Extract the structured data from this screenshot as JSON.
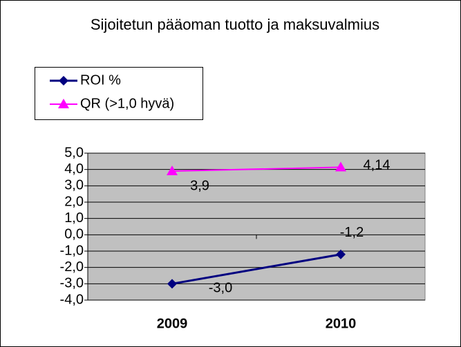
{
  "chart_data": {
    "type": "line",
    "title": "Sijoitetun pääoman tuotto ja maksuvalmius",
    "categories": [
      "2009",
      "2010"
    ],
    "series": [
      {
        "name": "ROI %",
        "color": "#000080",
        "marker": "diamond",
        "values": [
          -3.0,
          -1.2
        ],
        "value_labels": [
          "-3,0",
          "-1,2"
        ]
      },
      {
        "name": "QR (>1,0 hyvä)",
        "color": "#ff00ff",
        "marker": "triangle",
        "values": [
          3.9,
          4.14
        ],
        "value_labels": [
          "3,9",
          "4,14"
        ]
      }
    ],
    "ylim": [
      -4,
      5
    ],
    "yticks": [
      {
        "value": -4,
        "label": "-4,0"
      },
      {
        "value": -3,
        "label": "-3,0"
      },
      {
        "value": -2,
        "label": "-2,0"
      },
      {
        "value": -1,
        "label": "-1,0"
      },
      {
        "value": 0,
        "label": "0,0"
      },
      {
        "value": 1,
        "label": "1,0"
      },
      {
        "value": 2,
        "label": "2,0"
      },
      {
        "value": 3,
        "label": "3,0"
      },
      {
        "value": 4,
        "label": "4,0"
      },
      {
        "value": 5,
        "label": "5,0"
      }
    ],
    "grid": true,
    "plot_background": "#c0c0c0",
    "legend_position": "top-left"
  }
}
